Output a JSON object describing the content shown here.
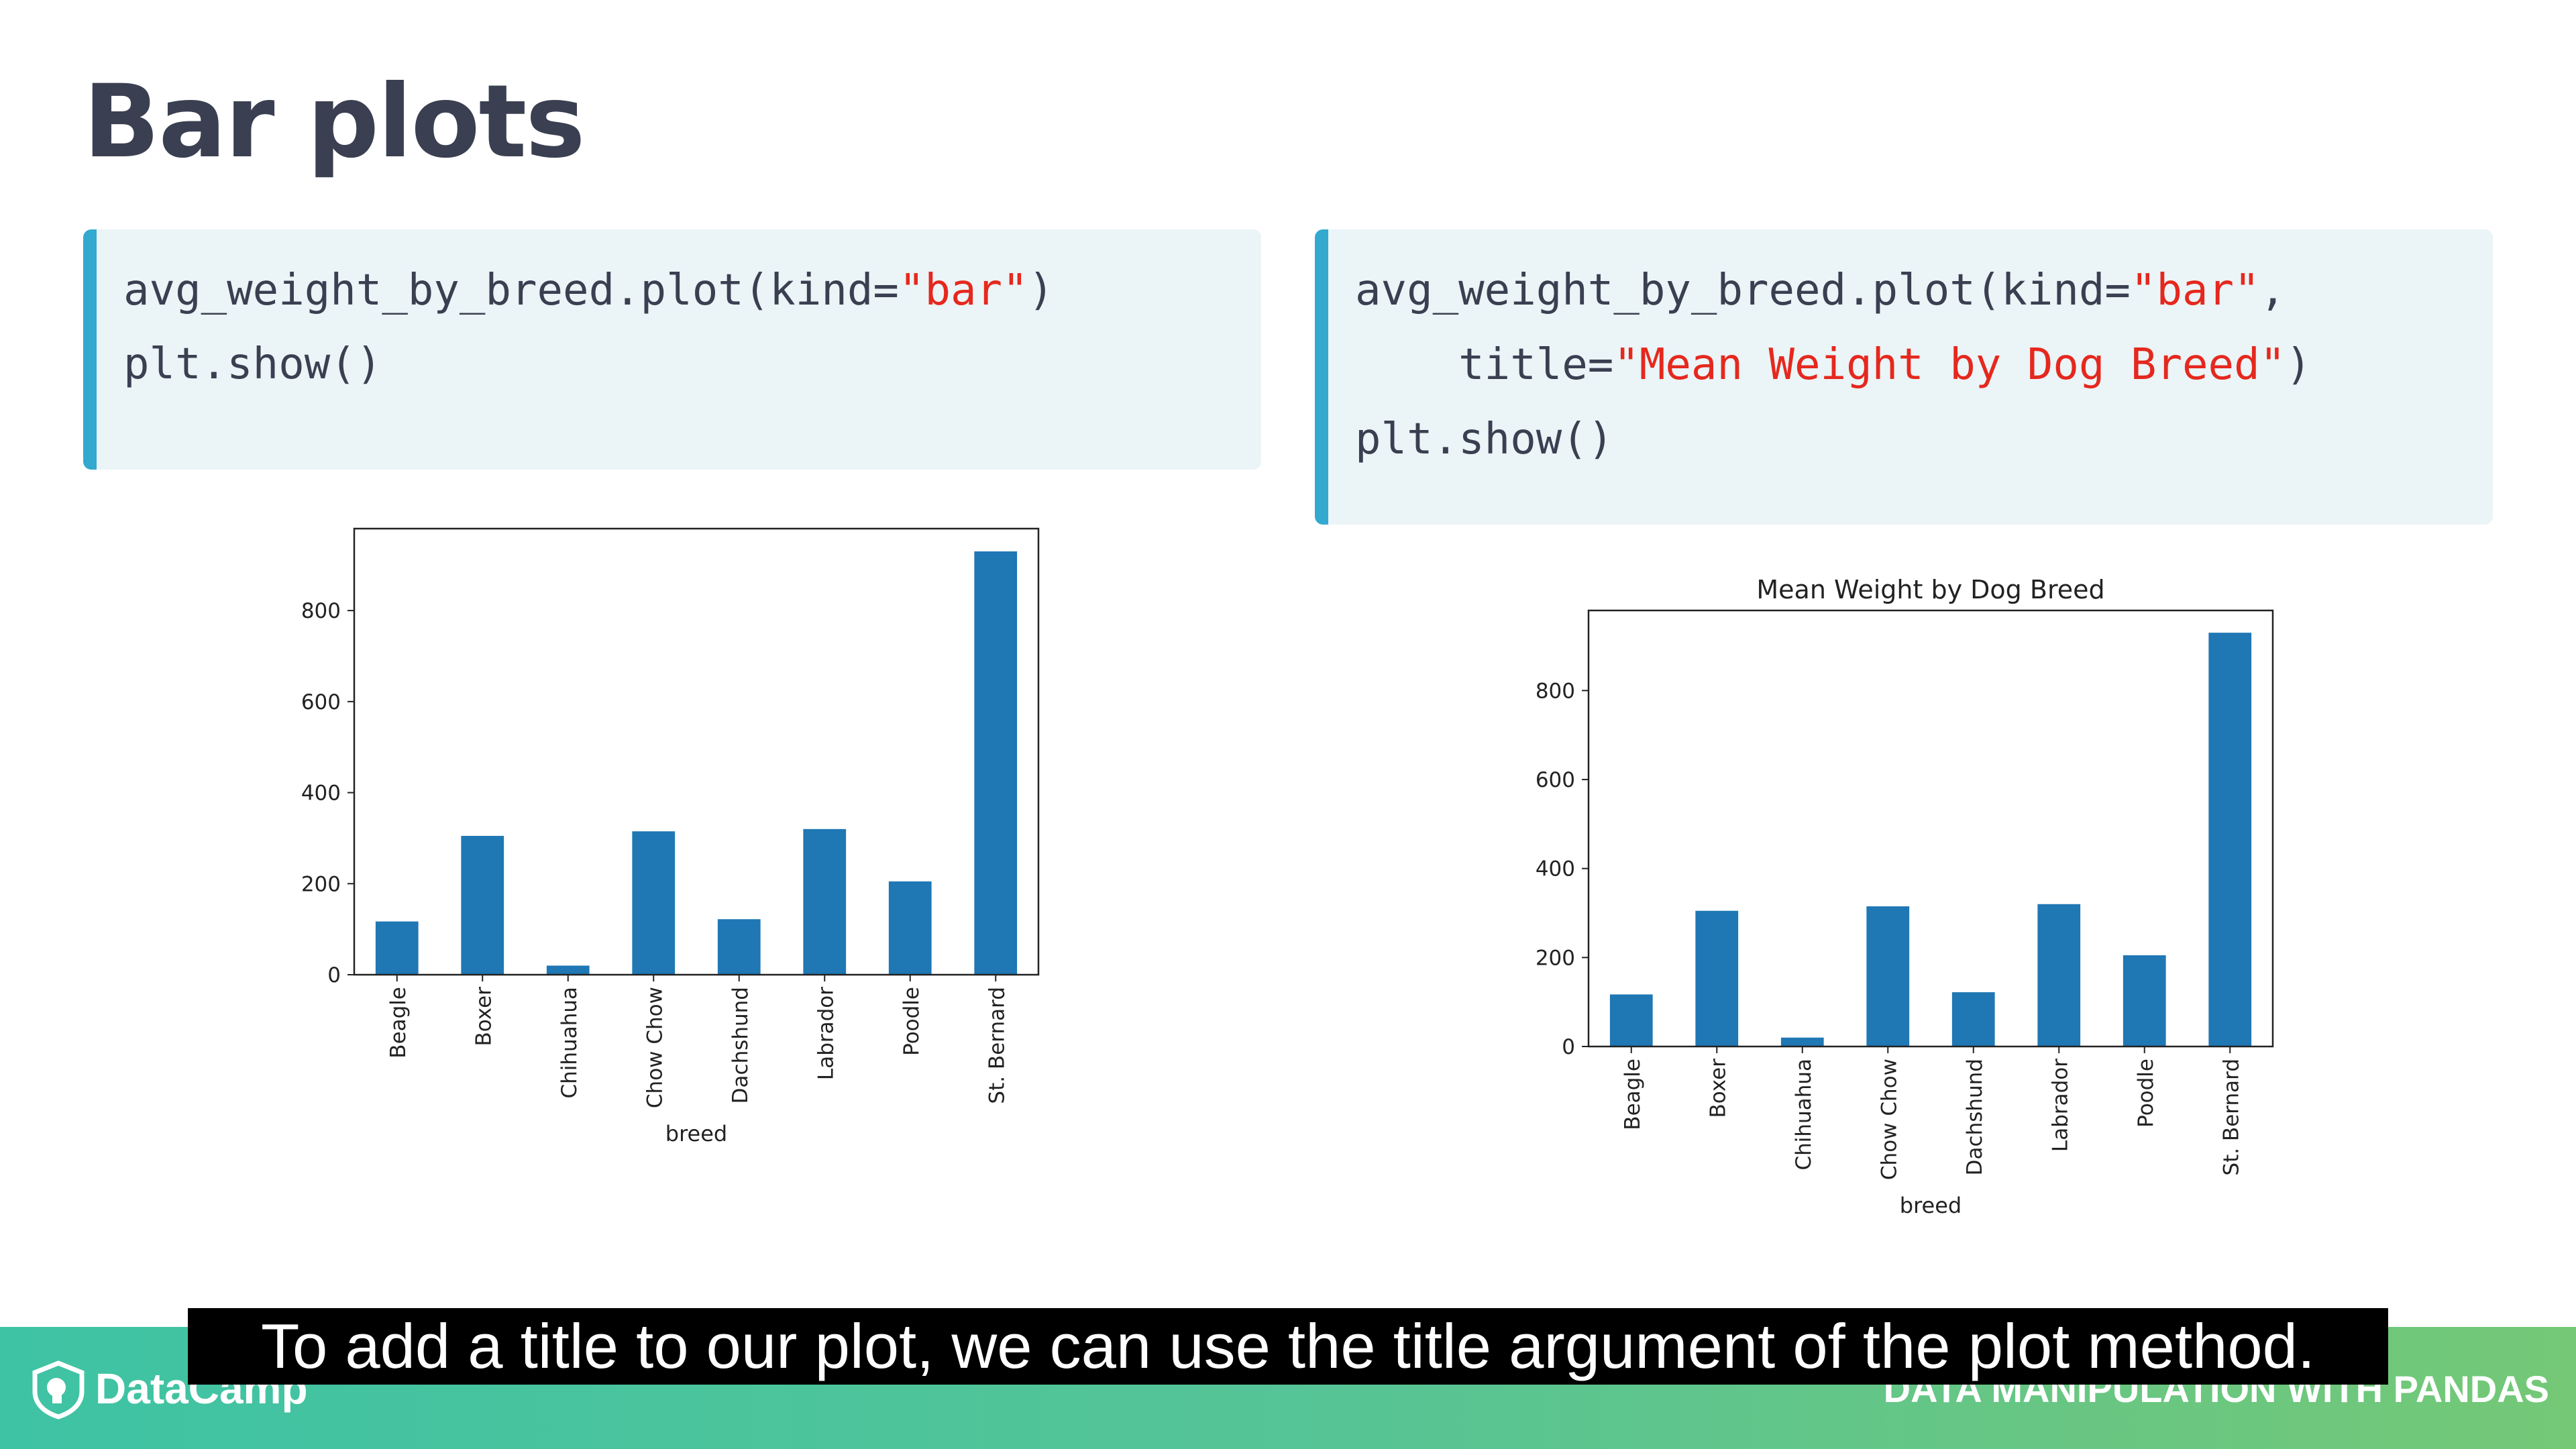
{
  "slide": {
    "title": "Bar plots"
  },
  "code_left": {
    "line1_pre": "avg_weight_by_breed.plot(kind=",
    "line1_str": "\"bar\"",
    "line1_post": ")",
    "line2": "plt.show()"
  },
  "code_right": {
    "line1_pre": "avg_weight_by_breed.plot(kind=",
    "line1_str": "\"bar\"",
    "line1_post": ",",
    "line2_pre": "    title=",
    "line2_str": "\"Mean Weight by Dog Breed\"",
    "line2_post": ")",
    "line3": "plt.show()"
  },
  "colors": {
    "bar": "#1f77b4",
    "code_string": "#e5281e",
    "code_border": "#33a9cf"
  },
  "chart_data": [
    {
      "type": "bar",
      "title": "",
      "xlabel": "breed",
      "ylabel": "",
      "categories": [
        "Beagle",
        "Boxer",
        "Chihuahua",
        "Chow Chow",
        "Dachshund",
        "Labrador",
        "Poodle",
        "St. Bernard"
      ],
      "values": [
        117,
        305,
        20,
        315,
        122,
        320,
        205,
        930
      ],
      "ylim": [
        0,
        980
      ],
      "yticks": [
        0,
        200,
        400,
        600,
        800
      ],
      "grid": false
    },
    {
      "type": "bar",
      "title": "Mean Weight by Dog Breed",
      "xlabel": "breed",
      "ylabel": "",
      "categories": [
        "Beagle",
        "Boxer",
        "Chihuahua",
        "Chow Chow",
        "Dachshund",
        "Labrador",
        "Poodle",
        "St. Bernard"
      ],
      "values": [
        117,
        305,
        20,
        315,
        122,
        320,
        205,
        930
      ],
      "ylim": [
        0,
        980
      ],
      "yticks": [
        0,
        200,
        400,
        600,
        800
      ],
      "grid": false
    }
  ],
  "footer": {
    "brand": "DataCamp",
    "course": "DATA MANIPULATION WITH PANDAS",
    "logo_icon": "datacamp-logo-icon"
  },
  "subtitle": "To add a title to our plot, we can use the title argument of the plot method."
}
